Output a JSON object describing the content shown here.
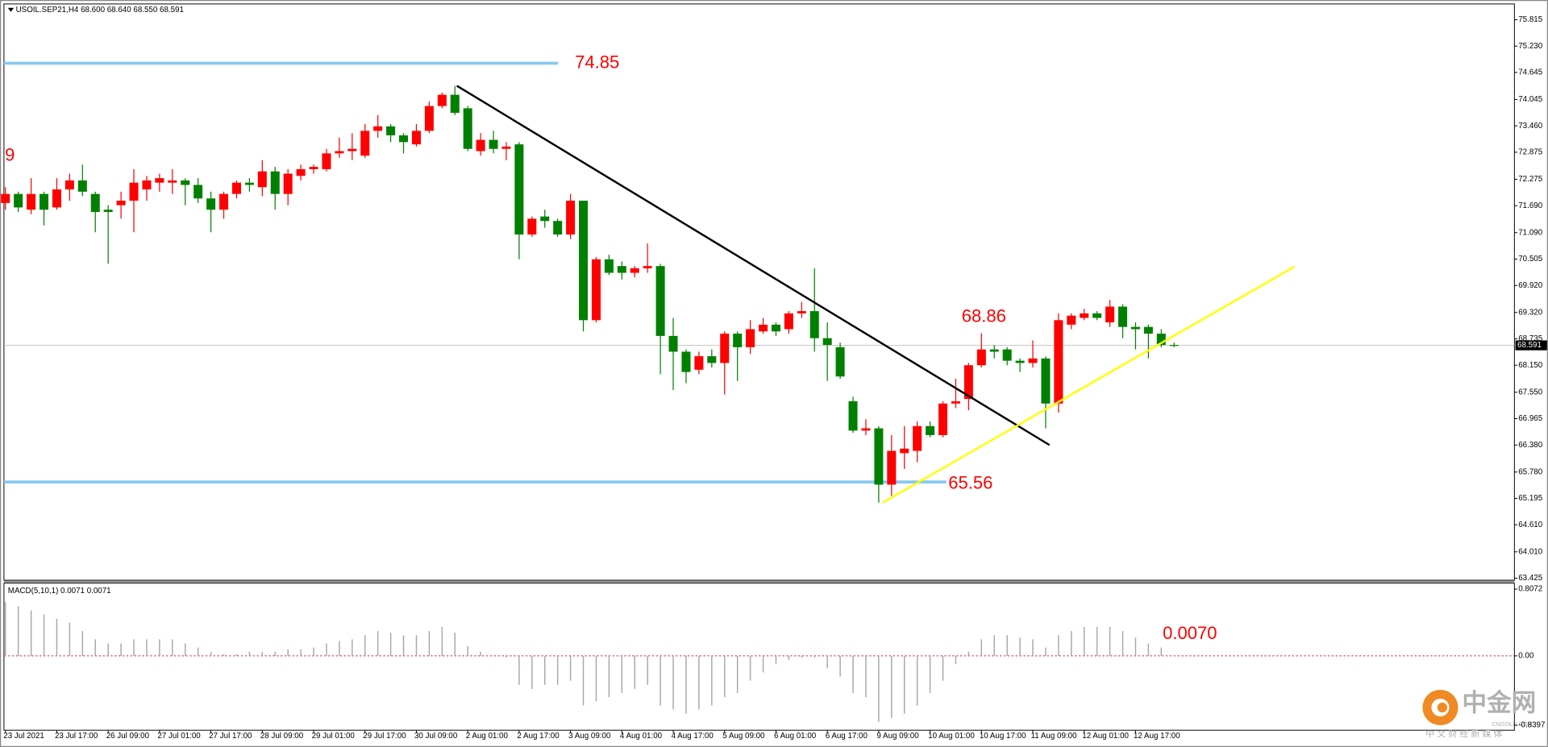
{
  "chart_data": [
    {
      "type": "candlestick",
      "title": "USOIL.SEP21,H4  68.600 68.640 68.550 68.591",
      "categories": [
        "23 Jul 2021",
        null,
        null,
        null,
        "23 Jul 17:00",
        null,
        null,
        null,
        "26 Jul 09:00",
        null,
        null,
        null,
        "27 Jul 01:00",
        null,
        null,
        null,
        "27 Jul 17:00",
        null,
        null,
        null,
        "28 Jul 09:00",
        null,
        null,
        null,
        "29 Jul 01:00",
        null,
        null,
        null,
        "29 Jul 17:00",
        null,
        null,
        null,
        "30 Jul 09:00",
        null,
        null,
        null,
        "2 Aug 01:00",
        null,
        null,
        null,
        "2 Aug 17:00",
        null,
        null,
        null,
        "3 Aug 09:00",
        null,
        null,
        null,
        "4 Aug 01:00",
        null,
        null,
        null,
        "4 Aug 17:00",
        null,
        null,
        null,
        "5 Aug 09:00",
        null,
        null,
        null,
        "6 Aug 01:00",
        null,
        null,
        null,
        "6 Aug 17:00",
        null,
        null,
        null,
        "9 Aug 09:00",
        null,
        null,
        null,
        "10 Aug 01:00",
        null,
        null,
        null,
        "10 Aug 17:00",
        null,
        null,
        null,
        "11 Aug 09:00",
        null,
        null,
        null,
        "12 Aug 01:00",
        null,
        null,
        null,
        "12 Aug 17:00",
        null,
        null,
        null
      ],
      "open": [
        71.75,
        71.95,
        71.6,
        71.95,
        71.65,
        72.05,
        72.25,
        71.95,
        71.6,
        71.7,
        71.8,
        72.05,
        72.2,
        72.2,
        72.25,
        72.15,
        71.85,
        71.6,
        71.95,
        72.2,
        72.1,
        72.45,
        71.95,
        72.35,
        72.5,
        72.5,
        72.85,
        72.9,
        72.8,
        73.35,
        73.45,
        73.25,
        73.05,
        73.35,
        73.9,
        74.15,
        73.85,
        72.9,
        73.15,
        72.95,
        73.05,
        71.05,
        71.45,
        71.35,
        71.05,
        71.8,
        69.15,
        70.5,
        70.35,
        70.2,
        70.3,
        70.35,
        68.8,
        68.45,
        68.05,
        68.35,
        68.2,
        68.85,
        68.55,
        68.9,
        69.05,
        68.95,
        69.3,
        69.35,
        68.75,
        68.55,
        67.35,
        66.7,
        66.75,
        65.5,
        66.2,
        66.25,
        66.8,
        66.6,
        67.3,
        67.4,
        68.15,
        68.5,
        68.5,
        68.25,
        68.2,
        68.3,
        67.3,
        69.05,
        69.2,
        69.3,
        69.1,
        69.45,
        69.0,
        69.0,
        68.85,
        68.6
      ],
      "high": [
        72.1,
        72.0,
        72.3,
        72.0,
        72.3,
        72.4,
        72.6,
        72.0,
        71.7,
        72.0,
        72.5,
        72.35,
        72.4,
        72.5,
        72.3,
        72.3,
        72.0,
        72.0,
        72.25,
        72.3,
        72.7,
        72.55,
        72.5,
        72.6,
        72.6,
        72.95,
        73.2,
        73.3,
        73.5,
        73.7,
        73.5,
        73.3,
        73.5,
        74.0,
        74.2,
        74.35,
        73.9,
        73.3,
        73.35,
        73.1,
        73.1,
        71.45,
        71.6,
        71.4,
        71.95,
        71.8,
        70.55,
        70.6,
        70.45,
        70.35,
        70.85,
        70.4,
        69.2,
        68.5,
        68.45,
        68.5,
        68.9,
        68.9,
        69.15,
        69.2,
        69.1,
        69.35,
        69.55,
        70.3,
        69.1,
        68.65,
        67.45,
        66.95,
        66.8,
        66.6,
        66.8,
        66.9,
        66.9,
        67.35,
        67.85,
        68.2,
        68.86,
        68.6,
        68.55,
        68.3,
        68.7,
        68.35,
        69.3,
        69.3,
        69.4,
        69.35,
        69.6,
        69.5,
        69.1,
        69.05,
        68.95,
        68.65
      ],
      "low": [
        71.6,
        71.55,
        71.5,
        71.25,
        71.6,
        71.8,
        71.9,
        71.1,
        70.4,
        71.4,
        71.1,
        71.8,
        72.0,
        71.95,
        71.7,
        71.75,
        71.1,
        71.4,
        71.85,
        72.0,
        71.9,
        71.6,
        71.7,
        72.25,
        72.4,
        72.45,
        72.75,
        72.7,
        72.75,
        73.2,
        73.1,
        72.85,
        73.0,
        73.3,
        73.85,
        73.7,
        72.9,
        72.8,
        72.85,
        72.7,
        70.5,
        71.0,
        71.2,
        71.0,
        70.95,
        68.9,
        69.1,
        70.15,
        70.05,
        70.1,
        70.2,
        67.95,
        67.6,
        67.75,
        67.95,
        68.1,
        67.5,
        67.8,
        68.4,
        68.85,
        68.8,
        68.85,
        69.2,
        68.45,
        67.8,
        67.85,
        66.65,
        66.6,
        65.1,
        65.25,
        65.85,
        66.0,
        66.55,
        66.55,
        67.2,
        67.15,
        68.1,
        68.3,
        68.15,
        68.0,
        68.1,
        66.75,
        67.1,
        68.95,
        69.15,
        69.15,
        69.0,
        68.75,
        68.5,
        68.3,
        68.55,
        68.55
      ],
      "close": [
        71.95,
        71.65,
        71.95,
        71.6,
        72.05,
        72.25,
        72.0,
        71.55,
        71.55,
        71.8,
        72.2,
        72.25,
        72.3,
        72.25,
        72.15,
        71.85,
        71.6,
        71.95,
        72.2,
        72.15,
        72.45,
        71.95,
        72.4,
        72.5,
        72.55,
        72.85,
        72.9,
        72.95,
        73.35,
        73.45,
        73.25,
        73.1,
        73.35,
        73.9,
        74.15,
        73.75,
        72.95,
        73.15,
        72.95,
        73.0,
        71.05,
        71.4,
        71.35,
        71.05,
        71.8,
        69.15,
        70.5,
        70.2,
        70.2,
        70.3,
        70.35,
        68.8,
        68.45,
        68.0,
        68.35,
        68.2,
        68.85,
        68.55,
        68.95,
        69.05,
        68.9,
        69.3,
        69.35,
        68.75,
        68.6,
        67.9,
        66.7,
        66.75,
        65.5,
        66.25,
        66.3,
        66.8,
        66.6,
        67.3,
        67.35,
        68.15,
        68.5,
        68.45,
        68.25,
        68.2,
        68.3,
        67.3,
        69.15,
        69.25,
        69.3,
        69.2,
        69.45,
        69.0,
        68.95,
        68.85,
        68.6,
        68.591
      ],
      "bull_color": "#ff0000",
      "bear_color": "#008000",
      "ylim": [
        63.38,
        76.165
      ],
      "yticks": [
        75.815,
        {
          "value": 75.23,
          "label": "75.230"
        },
        74.645,
        74.045,
        {
          "value": 73.46,
          "label": "73.460"
        },
        72.875,
        72.275,
        {
          "value": 71.69,
          "label": "71.690"
        },
        {
          "value": 71.09,
          "label": "71.090"
        },
        70.505,
        {
          "value": 69.92,
          "label": "69.920"
        },
        {
          "value": 69.32,
          "label": "69.320"
        },
        68.735,
        {
          "value": 68.15,
          "label": "68.150"
        },
        {
          "value": 67.55,
          "label": "67.550"
        },
        66.965,
        {
          "value": 66.38,
          "label": "66.380"
        },
        {
          "value": 65.78,
          "label": "65.780"
        },
        65.195,
        {
          "value": 64.61,
          "label": "64.610"
        },
        {
          "value": 64.01,
          "label": "64.010"
        },
        63.425
      ],
      "current_price": 68.591,
      "levels": [
        {
          "value": 74.85,
          "color": "#87c8f0"
        },
        {
          "value": 65.56,
          "color": "#87c8f0"
        }
      ],
      "trendlines": [
        {
          "color": "#000000",
          "points": [
            [
              35.15,
              74.35
            ],
            [
              81.3,
              66.38
            ]
          ]
        },
        {
          "color": "#ffff00",
          "points": [
            [
              68.3,
              65.1
            ],
            [
              100.4,
              70.34
            ]
          ]
        }
      ],
      "annotations": [
        "9"
      ]
    },
    {
      "type": "histogram",
      "title": "MACD(5,10,1) 0.0071 0.0071",
      "values": [
        0.65,
        0.6,
        0.55,
        0.5,
        0.45,
        0.4,
        0.3,
        0.2,
        0.15,
        0.15,
        0.2,
        0.2,
        0.2,
        0.2,
        0.15,
        0.1,
        0.05,
        0.02,
        0.02,
        0.05,
        0.05,
        0.05,
        0.08,
        0.08,
        0.1,
        0.15,
        0.18,
        0.2,
        0.25,
        0.3,
        0.28,
        0.25,
        0.25,
        0.3,
        0.35,
        0.28,
        0.12,
        0.05,
        0.0,
        -0.02,
        -0.35,
        -0.4,
        -0.35,
        -0.35,
        -0.3,
        -0.6,
        -0.55,
        -0.5,
        -0.45,
        -0.4,
        -0.35,
        -0.6,
        -0.65,
        -0.7,
        -0.65,
        -0.6,
        -0.5,
        -0.45,
        -0.3,
        -0.2,
        -0.1,
        -0.05,
        -0.02,
        -0.02,
        -0.15,
        -0.25,
        -0.45,
        -0.5,
        -0.8,
        -0.75,
        -0.7,
        -0.6,
        -0.45,
        -0.3,
        -0.1,
        0.05,
        0.2,
        0.25,
        0.25,
        0.22,
        0.2,
        0.1,
        0.25,
        0.3,
        0.35,
        0.35,
        0.35,
        0.3,
        0.22,
        0.15,
        0.1,
        0.0071
      ],
      "color": "#a8a8a8",
      "ylim": [
        -0.8397,
        0.8072
      ],
      "yticks": [
        0.8072,
        {
          "value": 0,
          "label": "0.00"
        },
        -0.8397
      ],
      "zero_line_color": "#cc3333",
      "annotation": {
        "value": 0.007,
        "label": "0.0070"
      }
    }
  ],
  "watermark": {
    "title": "中金网",
    "url": "CNGOLD.COM",
    "tagline": "中 文 财 经 新 媒 体"
  }
}
